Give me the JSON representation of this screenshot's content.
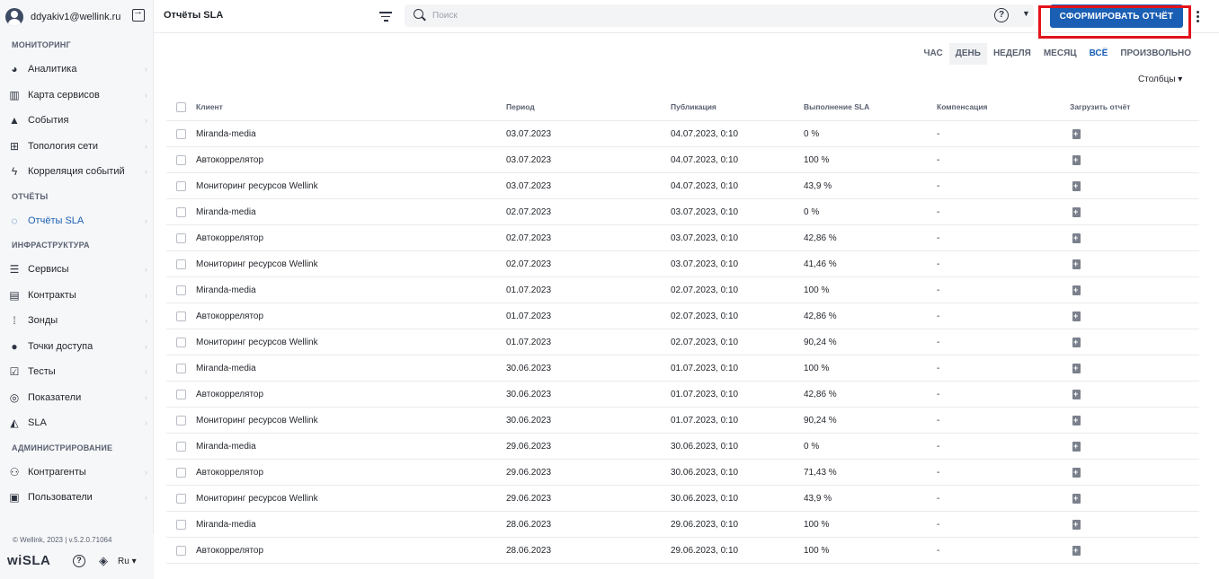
{
  "user": {
    "email": "ddyakiv1@wellink.ru"
  },
  "sidebar": {
    "sections": [
      {
        "title": "МОНИТОРИНГ",
        "items": [
          {
            "label": "Аналитика",
            "icon": "pie-chart-icon"
          },
          {
            "label": "Карта сервисов",
            "icon": "map-icon"
          },
          {
            "label": "События",
            "icon": "warning-icon"
          },
          {
            "label": "Топология сети",
            "icon": "topology-icon"
          },
          {
            "label": "Корреляция событий",
            "icon": "bolt-icon"
          }
        ]
      },
      {
        "title": "ОТЧЁТЫ",
        "items": [
          {
            "label": "Отчёты SLA",
            "icon": "report-ring-icon",
            "active": true
          }
        ]
      },
      {
        "title": "ИНФРАСТРУКТУРА",
        "items": [
          {
            "label": "Сервисы",
            "icon": "list-icon"
          },
          {
            "label": "Контракты",
            "icon": "document-icon"
          },
          {
            "label": "Зонды",
            "icon": "signal-icon"
          },
          {
            "label": "Точки доступа",
            "icon": "dot-icon"
          },
          {
            "label": "Тесты",
            "icon": "checklist-icon"
          },
          {
            "label": "Показатели",
            "icon": "metrics-icon"
          },
          {
            "label": "SLA",
            "icon": "sla-icon"
          }
        ]
      },
      {
        "title": "АДМИНИСТРИРОВАНИЕ",
        "items": [
          {
            "label": "Контрагенты",
            "icon": "people-icon"
          },
          {
            "label": "Пользователи",
            "icon": "user-card-icon"
          }
        ]
      }
    ],
    "footer": {
      "copyright": "© Wellink, 2023 | v.5.2.0.71064",
      "logo": "wiSLA",
      "lang": "Ru"
    }
  },
  "topbar": {
    "title": "Отчёты SLA",
    "search_placeholder": "Поиск",
    "generate_button": "СФОРМИРОВАТЬ ОТЧЁТ",
    "accent": "#1a5fb4",
    "highlight": "#e3131b"
  },
  "period_tabs": [
    {
      "label": "ЧАС",
      "state": ""
    },
    {
      "label": "ДЕНЬ",
      "state": "selected"
    },
    {
      "label": "НЕДЕЛЯ",
      "state": ""
    },
    {
      "label": "МЕСЯЦ",
      "state": ""
    },
    {
      "label": "ВСЁ",
      "state": "active"
    },
    {
      "label": "ПРОИЗВОЛЬНО",
      "state": ""
    }
  ],
  "columns_button": "Столбцы",
  "table": {
    "headers": [
      "Клиент",
      "Период",
      "Публикация",
      "Выполнение SLA",
      "Компенсация",
      "Загрузить отчёт"
    ],
    "rows": [
      [
        "Miranda-media",
        "03.07.2023",
        "04.07.2023, 0:10",
        "0 %",
        "-"
      ],
      [
        "Автокоррелятор",
        "03.07.2023",
        "04.07.2023, 0:10",
        "100 %",
        "-"
      ],
      [
        "Мониторинг ресурсов Wellink",
        "03.07.2023",
        "04.07.2023, 0:10",
        "43,9 %",
        "-"
      ],
      [
        "Miranda-media",
        "02.07.2023",
        "03.07.2023, 0:10",
        "0 %",
        "-"
      ],
      [
        "Автокоррелятор",
        "02.07.2023",
        "03.07.2023, 0:10",
        "42,86 %",
        "-"
      ],
      [
        "Мониторинг ресурсов Wellink",
        "02.07.2023",
        "03.07.2023, 0:10",
        "41,46 %",
        "-"
      ],
      [
        "Miranda-media",
        "01.07.2023",
        "02.07.2023, 0:10",
        "100 %",
        "-"
      ],
      [
        "Автокоррелятор",
        "01.07.2023",
        "02.07.2023, 0:10",
        "42,86 %",
        "-"
      ],
      [
        "Мониторинг ресурсов Wellink",
        "01.07.2023",
        "02.07.2023, 0:10",
        "90,24 %",
        "-"
      ],
      [
        "Miranda-media",
        "30.06.2023",
        "01.07.2023, 0:10",
        "100 %",
        "-"
      ],
      [
        "Автокоррелятор",
        "30.06.2023",
        "01.07.2023, 0:10",
        "42,86 %",
        "-"
      ],
      [
        "Мониторинг ресурсов Wellink",
        "30.06.2023",
        "01.07.2023, 0:10",
        "90,24 %",
        "-"
      ],
      [
        "Miranda-media",
        "29.06.2023",
        "30.06.2023, 0:10",
        "0 %",
        "-"
      ],
      [
        "Автокоррелятор",
        "29.06.2023",
        "30.06.2023, 0:10",
        "71,43 %",
        "-"
      ],
      [
        "Мониторинг ресурсов Wellink",
        "29.06.2023",
        "30.06.2023, 0:10",
        "43,9 %",
        "-"
      ],
      [
        "Miranda-media",
        "28.06.2023",
        "29.06.2023, 0:10",
        "100 %",
        "-"
      ],
      [
        "Автокоррелятор",
        "28.06.2023",
        "29.06.2023, 0:10",
        "100 %",
        "-"
      ]
    ]
  }
}
